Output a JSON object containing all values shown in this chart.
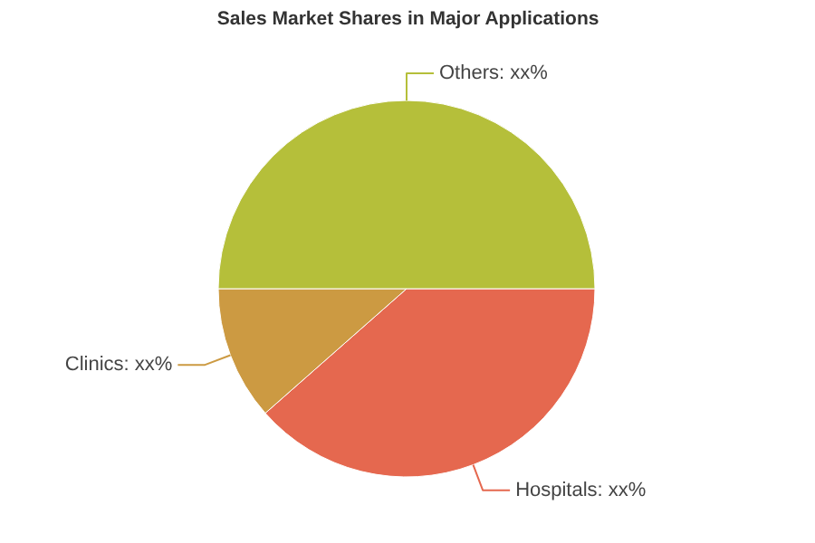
{
  "chart_data": {
    "type": "pie",
    "title": "Sales Market Shares in Major Applications",
    "categories": [
      "Hospitals",
      "Clinics",
      "Others"
    ],
    "values": [
      38.5,
      11.5,
      50
    ],
    "colors": [
      "#e5684f",
      "#cc9a42",
      "#b5bf3a"
    ],
    "value_labels": [
      "xx%",
      "xx%",
      "xx%"
    ]
  }
}
